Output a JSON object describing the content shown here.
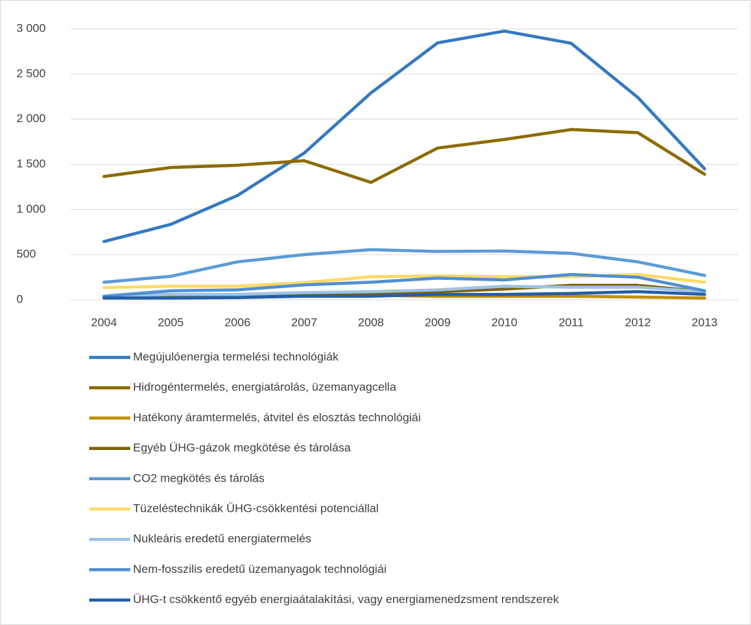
{
  "chart_data": {
    "type": "line",
    "categories": [
      "2004",
      "2005",
      "2006",
      "2007",
      "2008",
      "2009",
      "2010",
      "2011",
      "2012",
      "2013"
    ],
    "ylim": [
      0,
      3000
    ],
    "yticks": [
      0,
      500,
      {
        "value": 1000,
        "label": "1 000"
      },
      {
        "value": 1500,
        "label": "1 500"
      },
      {
        "value": 2000,
        "label": "2 000"
      },
      {
        "value": 2500,
        "label": "2 500"
      },
      {
        "value": 3000,
        "label": "3 000"
      }
    ],
    "grid": true,
    "legend": "bottom",
    "series": [
      {
        "name": "Megújulóenergia termelési technológiák",
        "color": "#3478c0",
        "values": [
          645,
          835,
          1155,
          1625,
          2290,
          2845,
          2975,
          2840,
          2240,
          1450
        ]
      },
      {
        "name": "Hidrogéntermelés, energiatárolás, üzemanyagcella",
        "color": "#8c6b00",
        "values": [
          1365,
          1465,
          1490,
          1540,
          1300,
          1680,
          1775,
          1885,
          1850,
          1390
        ]
      },
      {
        "name": "Hatékony áramtermelés, átvitel és elosztás technológiái",
        "color": "#bf9000",
        "values": [
          40,
          50,
          50,
          60,
          50,
          40,
          40,
          40,
          30,
          20
        ]
      },
      {
        "name": "Egyéb ÜHG-gázok megkötése és tárolása",
        "color": "#7f6000",
        "values": [
          20,
          30,
          40,
          60,
          70,
          90,
          120,
          160,
          160,
          90
        ]
      },
      {
        "name": "CO2 megkötés és tárolás",
        "color": "#5b9bd5",
        "values": [
          195,
          260,
          420,
          500,
          555,
          535,
          540,
          515,
          420,
          270
        ]
      },
      {
        "name": "Tüzeléstechnikák ÜHG-csökkentési potenciállal",
        "color": "#ffd966",
        "values": [
          135,
          150,
          150,
          190,
          255,
          265,
          255,
          255,
          280,
          195
        ]
      },
      {
        "name": "Nukleáris eredetű energiatermelés",
        "color": "#9dc3e6",
        "values": [
          40,
          60,
          60,
          80,
          90,
          110,
          150,
          140,
          140,
          90
        ]
      },
      {
        "name": "Nem-fosszilis eredetű üzemanyagok technológiái",
        "color": "#4f90d0",
        "values": [
          40,
          100,
          110,
          165,
          195,
          240,
          220,
          280,
          250,
          100
        ]
      },
      {
        "name": "ÜHG-t csökkentő egyéb energiaátalakítási, vagy energiamenedzsment rendszerek",
        "color": "#245fa8",
        "values": [
          20,
          20,
          25,
          40,
          40,
          60,
          60,
          70,
          90,
          60
        ]
      }
    ]
  }
}
